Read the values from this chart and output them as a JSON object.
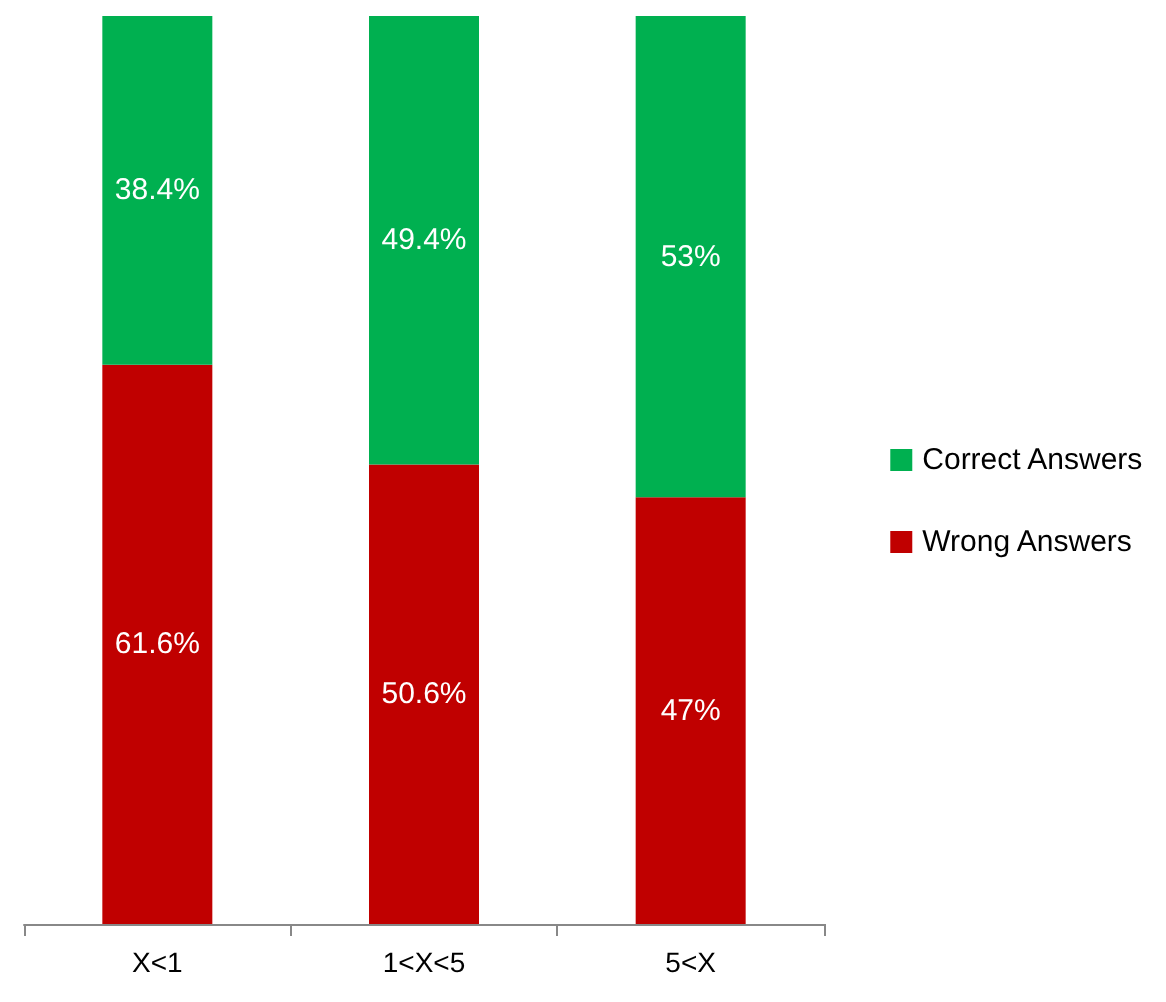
{
  "chart_data": {
    "type": "bar",
    "stacked": true,
    "categories": [
      "X<1",
      "1<X<5",
      "5<X"
    ],
    "series": [
      {
        "name": "Wrong Answers",
        "color": "#c00000",
        "values": [
          61.6,
          50.6,
          47
        ],
        "value_labels": [
          "61.6%",
          "50.6%",
          "47%"
        ]
      },
      {
        "name": "Correct Answers",
        "color": "#00b050",
        "values": [
          38.4,
          49.4,
          53
        ],
        "value_labels": [
          "38.4%",
          "49.4%",
          "53%"
        ]
      }
    ],
    "legend": "right"
  }
}
